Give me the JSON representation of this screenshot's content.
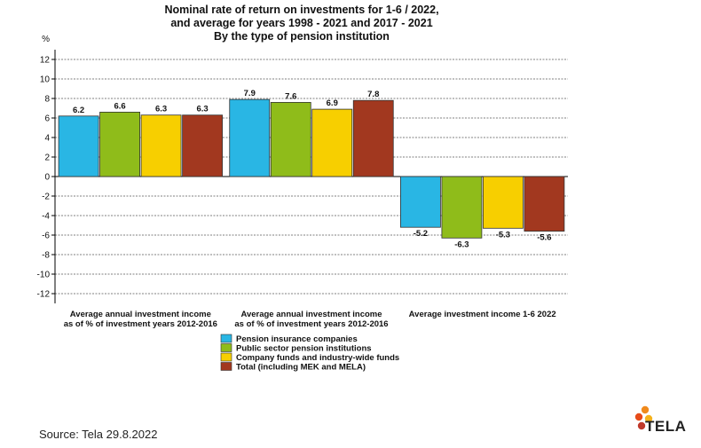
{
  "chart_data": {
    "type": "bar",
    "title": [
      "Nominal rate of return on investments for 1-6 / 2022,",
      "and average for years 1998 - 2021 and 2017 - 2021",
      "By the type of pension institution"
    ],
    "ylabel": "%",
    "ylim": [
      -13,
      13
    ],
    "yticks": [
      12,
      10,
      8,
      6,
      4,
      2,
      0,
      -2,
      -4,
      -6,
      -8,
      -10,
      -12
    ],
    "grid": true,
    "categories": [
      [
        "Average annual investment income",
        "as of % of investment years 2012-2016"
      ],
      [
        "Average annual investment income",
        "as of % of investment years 2012-2016"
      ],
      [
        "Average investment income 1-6 2022"
      ]
    ],
    "series": [
      {
        "name": "Pension insurance companies",
        "color": "#29b6e4",
        "values": [
          6.2,
          7.9,
          -5.2
        ],
        "labels": [
          "6.2",
          "7.9",
          "-5.2"
        ]
      },
      {
        "name": "Public sector pension institutions",
        "color": "#8fbc1a",
        "values": [
          6.6,
          7.6,
          -6.3
        ],
        "labels": [
          "6.6",
          "7.6",
          "-6.3"
        ]
      },
      {
        "name": "Company funds and industry-wide funds",
        "color": "#f7cf00",
        "values": [
          6.3,
          6.9,
          -5.3
        ],
        "labels": [
          "6.3",
          "6.9",
          "-5.3"
        ]
      },
      {
        "name": "Total (including MEK and MELA)",
        "color": "#a2381f",
        "values": [
          6.3,
          7.8,
          -5.6
        ],
        "labels": [
          "6.3",
          "7.8",
          "-5.6"
        ]
      }
    ],
    "legend_position": "bottom-center"
  },
  "source": "Source: Tela 29.8.2022",
  "logo": {
    "text": "TELA",
    "icon": "tela-dots-logo",
    "colors": [
      "#f08a1c",
      "#e74c1a",
      "#f5b21b",
      "#c0392b"
    ]
  }
}
